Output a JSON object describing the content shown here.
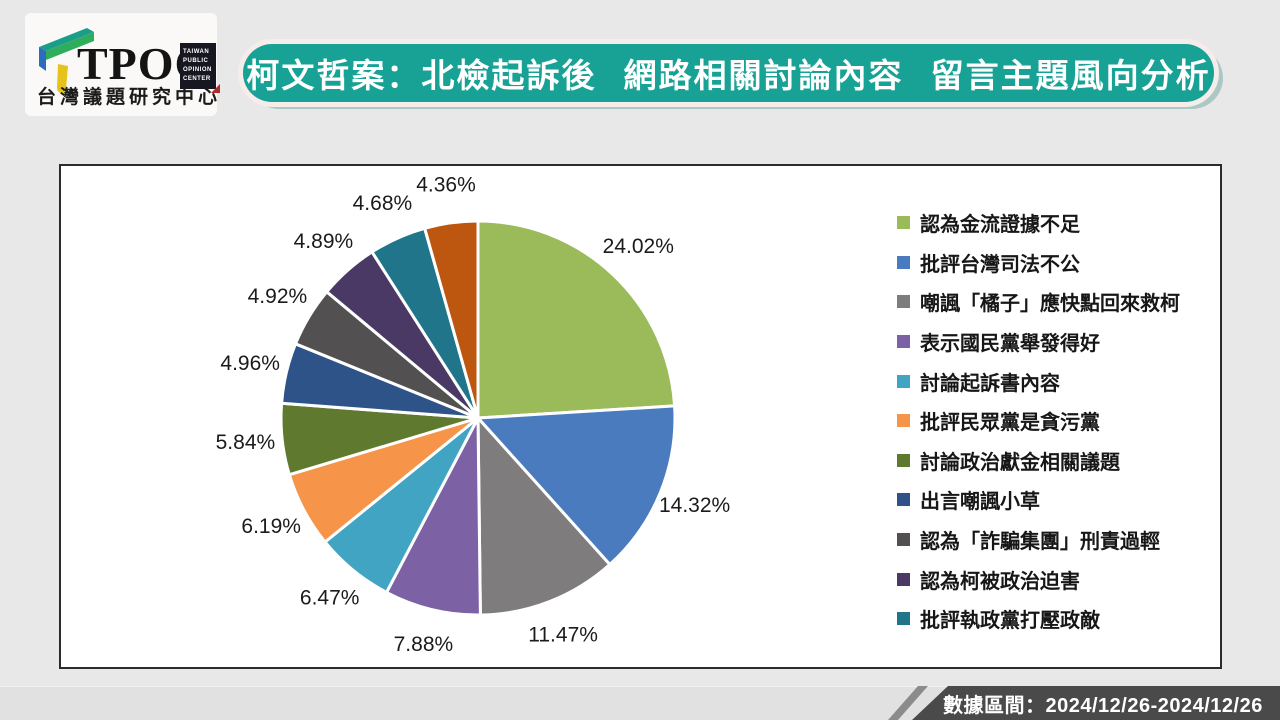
{
  "logo": {
    "brand": "TPOC",
    "badge_lines": [
      "TAIWAN",
      "PUBLIC",
      "OPINION",
      "CENTER"
    ],
    "subtitle": "台灣議題研究中心",
    "mark_colors": {
      "top": "#1B9E89",
      "front": "#2FAD5C",
      "left": "#2B6CBF",
      "bar": "#E5C31C"
    }
  },
  "header": {
    "title": "柯文哲案：北檢起訴後 網路相關討論內容 留言主題風向分析",
    "bg_color": "#17A295",
    "text_color": "#FFFFFF"
  },
  "footer": {
    "date_range_label": "數據區間：2024/12/26-2024/12/26",
    "bg_color": "#4B4A4A",
    "text_color": "#FFFFFF"
  },
  "chart_data": {
    "type": "pie",
    "start_angle": "top",
    "direction": "clockwise",
    "legend_position": "right",
    "value_suffix": "%",
    "slice_border_color": "#FFFFFF",
    "slices": [
      {
        "label": "認為金流證據不足",
        "value": 24.02,
        "color": "#9BBA59",
        "in_legend": true
      },
      {
        "label": "批評台灣司法不公",
        "value": 14.32,
        "color": "#4A7BBE",
        "in_legend": true
      },
      {
        "label": "嘲諷「橘子」應快點回來救柯",
        "value": 11.47,
        "color": "#7E7C7C",
        "in_legend": true
      },
      {
        "label": "表示國民黨舉發得好",
        "value": 7.88,
        "color": "#7C61A4",
        "in_legend": true
      },
      {
        "label": "討論起訴書內容",
        "value": 6.47,
        "color": "#42A4C3",
        "in_legend": true
      },
      {
        "label": "批評民眾黨是貪污黨",
        "value": 6.19,
        "color": "#F69549",
        "in_legend": true
      },
      {
        "label": "討論政治獻金相關議題",
        "value": 5.84,
        "color": "#5F7A2F",
        "in_legend": true
      },
      {
        "label": "出言嘲諷小草",
        "value": 4.96,
        "color": "#2D5388",
        "in_legend": true
      },
      {
        "label": "認為「詐騙集團」刑責過輕",
        "value": 4.92,
        "color": "#525050",
        "in_legend": true
      },
      {
        "label": "認為柯被政治迫害",
        "value": 4.89,
        "color": "#4A3964",
        "in_legend": true
      },
      {
        "label": "批評執政黨打壓政敵",
        "value": 4.68,
        "color": "#20758B",
        "in_legend": true
      },
      {
        "label": "",
        "value": 4.36,
        "color": "#BD560F",
        "in_legend": false
      }
    ]
  }
}
